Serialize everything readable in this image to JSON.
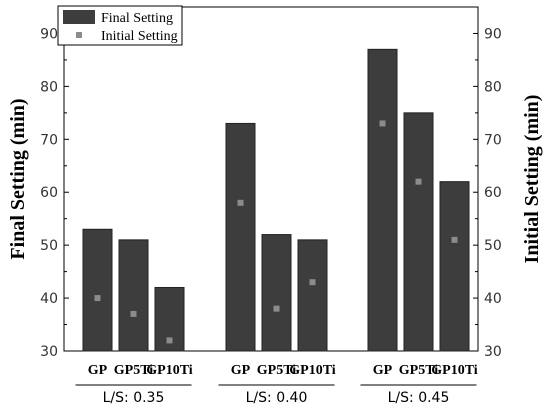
{
  "chart_data": {
    "type": "bar",
    "categories": [
      "GP",
      "GP5Ti",
      "GP10Ti",
      "GP",
      "GP5Ti",
      "GP10Ti",
      "GP",
      "GP5Ti",
      "GP10Ti"
    ],
    "groups": [
      {
        "label": "L/S: 0.35",
        "categories": [
          "GP",
          "GP5Ti",
          "GP10Ti"
        ]
      },
      {
        "label": "L/S: 0.40",
        "categories": [
          "GP",
          "GP5Ti",
          "GP10Ti"
        ]
      },
      {
        "label": "L/S: 0.45",
        "categories": [
          "GP",
          "GP5Ti",
          "GP10Ti"
        ]
      }
    ],
    "series": [
      {
        "name": "Final Setting",
        "kind": "bar",
        "axis": "left",
        "color": "#3d3d3d",
        "values": [
          53,
          51,
          42,
          73,
          52,
          51,
          87,
          75,
          62
        ]
      },
      {
        "name": "Initial Setting",
        "kind": "marker",
        "axis": "right",
        "color": "#8c8c8c",
        "values": [
          40,
          37,
          32,
          58,
          38,
          43,
          73,
          62,
          51
        ]
      }
    ],
    "ylabel": "Final Setting (min)",
    "ylabel_right": "Initial Setting (min)",
    "ylim": [
      30,
      95
    ],
    "yticks": [
      30,
      40,
      50,
      60,
      70,
      80,
      90
    ],
    "legend_position": "top-left",
    "grid": false
  }
}
